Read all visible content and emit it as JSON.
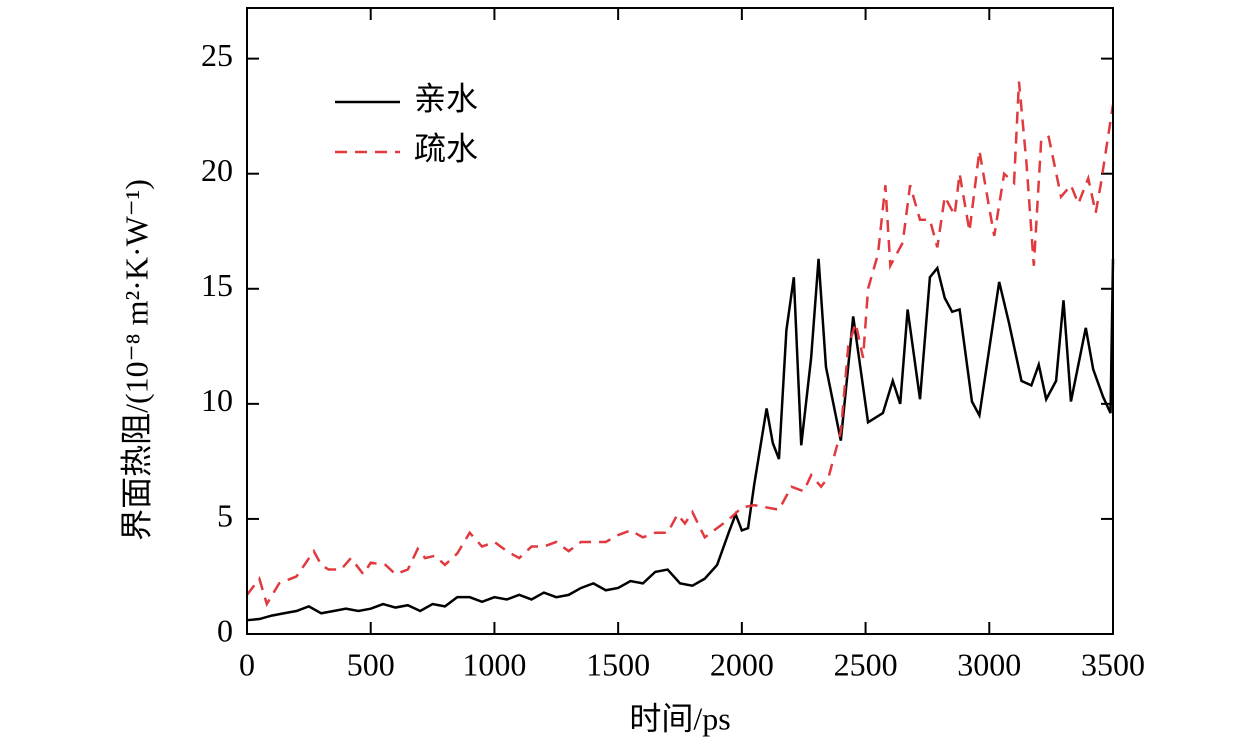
{
  "chart_data": {
    "type": "line",
    "xlabel": "时间/ps",
    "ylabel": "界面热阻/(10⁻⁸ m²·K·W⁻¹)",
    "xlim": [
      0,
      3500
    ],
    "xticks": [
      0,
      500,
      1000,
      1500,
      2000,
      2500,
      3000,
      3500
    ],
    "ylim": [
      0,
      27.2
    ],
    "yticks": [
      0,
      5,
      10,
      15,
      20,
      25
    ],
    "legend": "upper left",
    "series": [
      {
        "name": "亲水",
        "color": "#000000",
        "dash": "solid",
        "x": [
          0,
          50,
          100,
          150,
          200,
          250,
          300,
          350,
          400,
          450,
          500,
          550,
          600,
          650,
          700,
          750,
          800,
          850,
          900,
          950,
          1000,
          1050,
          1100,
          1150,
          1200,
          1250,
          1300,
          1350,
          1400,
          1450,
          1500,
          1550,
          1600,
          1650,
          1700,
          1750,
          1800,
          1850,
          1900,
          1950,
          1975,
          2000,
          2025,
          2050,
          2100,
          2125,
          2150,
          2180,
          2210,
          2240,
          2280,
          2310,
          2340,
          2400,
          2450,
          2480,
          2510,
          2570,
          2610,
          2640,
          2670,
          2720,
          2760,
          2790,
          2820,
          2850,
          2880,
          2930,
          2960,
          3040,
          3080,
          3130,
          3170,
          3200,
          3230,
          3270,
          3300,
          3330,
          3390,
          3420,
          3460,
          3490,
          3500
        ],
        "values": [
          0.6,
          0.65,
          0.8,
          0.9,
          1.0,
          1.2,
          0.9,
          1.0,
          1.1,
          1.0,
          1.1,
          1.3,
          1.15,
          1.25,
          1.0,
          1.3,
          1.2,
          1.6,
          1.6,
          1.4,
          1.6,
          1.5,
          1.7,
          1.5,
          1.8,
          1.6,
          1.7,
          2.0,
          2.2,
          1.9,
          2.0,
          2.3,
          2.2,
          2.7,
          2.8,
          2.2,
          2.1,
          2.4,
          3.0,
          4.5,
          5.2,
          4.5,
          4.6,
          6.5,
          9.8,
          8.3,
          7.6,
          13.2,
          15.5,
          8.2,
          12.0,
          16.3,
          11.6,
          8.4,
          13.8,
          11.5,
          9.2,
          9.6,
          11.0,
          10.0,
          14.1,
          10.2,
          15.5,
          15.9,
          14.6,
          14.0,
          14.1,
          10.1,
          9.5,
          15.3,
          13.5,
          11.0,
          10.8,
          11.7,
          10.2,
          11.0,
          14.5,
          10.1,
          13.3,
          11.5,
          10.3,
          9.6,
          16.3
        ]
      },
      {
        "name": "疏水",
        "color": "#e0393e",
        "dash": "dashed",
        "x": [
          0,
          50,
          80,
          130,
          200,
          270,
          300,
          330,
          380,
          420,
          470,
          500,
          560,
          600,
          650,
          690,
          720,
          760,
          800,
          850,
          900,
          950,
          1000,
          1050,
          1100,
          1150,
          1200,
          1250,
          1300,
          1350,
          1400,
          1450,
          1500,
          1550,
          1600,
          1650,
          1700,
          1740,
          1770,
          1800,
          1850,
          1900,
          1950,
          2000,
          2050,
          2100,
          2150,
          2200,
          2250,
          2280,
          2320,
          2350,
          2400,
          2430,
          2460,
          2490,
          2510,
          2550,
          2580,
          2600,
          2650,
          2680,
          2720,
          2760,
          2790,
          2820,
          2860,
          2880,
          2920,
          2960,
          3000,
          3020,
          3060,
          3100,
          3120,
          3150,
          3180,
          3210,
          3240,
          3290,
          3330,
          3360,
          3400,
          3430,
          3450,
          3500
        ],
        "values": [
          1.7,
          2.4,
          1.3,
          2.2,
          2.5,
          3.6,
          3.0,
          2.8,
          2.8,
          3.3,
          2.6,
          3.1,
          3.0,
          2.6,
          2.8,
          3.7,
          3.3,
          3.4,
          3.0,
          3.5,
          4.4,
          3.8,
          4.0,
          3.6,
          3.3,
          3.8,
          3.8,
          4.0,
          3.6,
          4.0,
          4.0,
          4.0,
          4.3,
          4.5,
          4.2,
          4.4,
          4.4,
          5.2,
          4.8,
          5.3,
          4.2,
          4.6,
          5.0,
          5.5,
          5.6,
          5.5,
          5.4,
          6.4,
          6.2,
          6.9,
          6.4,
          6.8,
          8.8,
          12.5,
          13.5,
          12.0,
          15.0,
          16.5,
          19.5,
          16.0,
          17.0,
          19.5,
          18.0,
          18.0,
          16.8,
          19.0,
          18.2,
          20.0,
          17.5,
          21.0,
          18.5,
          17.3,
          20.0,
          19.6,
          24.0,
          20.5,
          16.0,
          21.5,
          21.6,
          19.0,
          19.5,
          18.7,
          19.8,
          18.3,
          19.5,
          23.0
        ]
      }
    ]
  }
}
